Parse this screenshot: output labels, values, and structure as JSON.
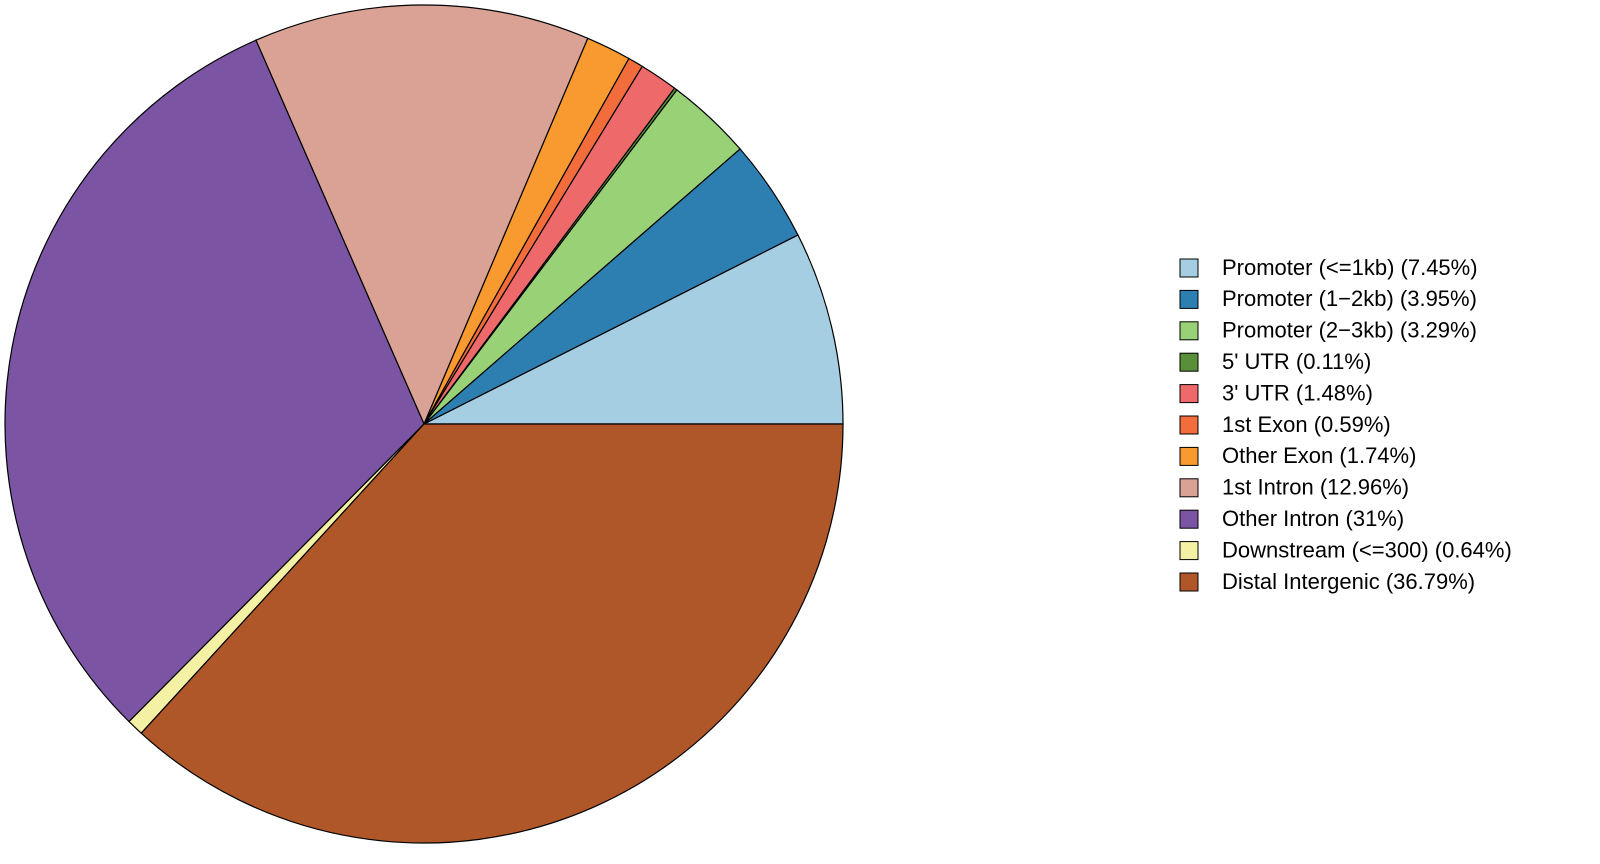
{
  "chart_data": {
    "type": "pie",
    "categories": [
      "Promoter (<=1kb) (7.45%)",
      "Promoter (1−2kb) (3.95%)",
      "Promoter (2−3kb) (3.29%)",
      "5' UTR (0.11%)",
      "3' UTR (1.48%)",
      "1st Exon (0.59%)",
      "Other Exon (1.74%)",
      "1st Intron (12.96%)",
      "Other Intron (31%)",
      "Downstream (<=300) (0.64%)",
      "Distal Intergenic (36.79%)"
    ],
    "values": [
      7.45,
      3.95,
      3.29,
      0.11,
      1.48,
      0.59,
      1.74,
      12.96,
      31,
      0.64,
      36.79
    ],
    "colors": [
      "#a6cee3",
      "#2c7fb0",
      "#99d177",
      "#5a8f3a",
      "#ee6a6a",
      "#f26c3c",
      "#f89a2f",
      "#d9a295",
      "#7b54a3",
      "#f4f0a4",
      "#b0572a"
    ],
    "legend": "right"
  }
}
